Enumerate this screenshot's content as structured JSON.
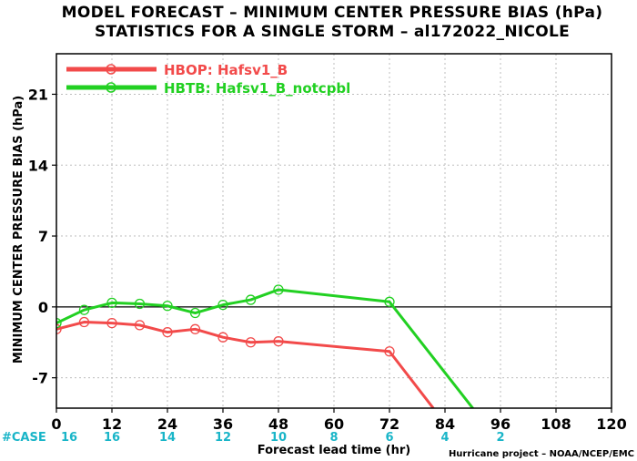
{
  "chart_data": {
    "type": "line",
    "title": "MODEL FORECAST – MINIMUM CENTER PRESSURE BIAS (hPa)",
    "subtitle": "STATISTICS FOR A SINGLE STORM – al172022_NICOLE",
    "xlabel": "Forecast lead time (hr)",
    "ylabel": "MINIMUM CENTER PRESSURE BIAS (hPa)",
    "xlim": [
      0,
      120
    ],
    "ylim": [
      -10,
      25
    ],
    "x_ticks": [
      0,
      12,
      24,
      36,
      48,
      60,
      72,
      84,
      96,
      108,
      120
    ],
    "y_ticks": [
      -7,
      0,
      7,
      14,
      21
    ],
    "grid": true,
    "legend_position": "top-left",
    "case_label": "#CASE",
    "case_counts": [
      {
        "x": 0,
        "n": "16"
      },
      {
        "x": 12,
        "n": "16"
      },
      {
        "x": 24,
        "n": "14"
      },
      {
        "x": 36,
        "n": "12"
      },
      {
        "x": 48,
        "n": "10"
      },
      {
        "x": 60,
        "n": "8"
      },
      {
        "x": 72,
        "n": "6"
      },
      {
        "x": 84,
        "n": "4"
      },
      {
        "x": 96,
        "n": "2"
      }
    ],
    "credit": "Hurricane project – NOAA/NCEP/EMC",
    "series": [
      {
        "name": "HBOP: Hafsv1_B",
        "color": "#f24a4a",
        "x": [
          0,
          6,
          12,
          18,
          24,
          30,
          36,
          42,
          48,
          72,
          84
        ],
        "y": [
          -2.2,
          -1.5,
          -1.6,
          -1.8,
          -2.5,
          -2.2,
          -3.0,
          -3.5,
          -3.4,
          -4.4,
          -11.5
        ],
        "markers": [
          true,
          true,
          true,
          true,
          true,
          true,
          true,
          true,
          true,
          true,
          false
        ]
      },
      {
        "name": "HBTB: Hafsv1_B_notcpbl",
        "color": "#22d022",
        "x": [
          0,
          6,
          12,
          18,
          24,
          30,
          36,
          42,
          48,
          72,
          96
        ],
        "y": [
          -1.6,
          -0.3,
          0.4,
          0.3,
          0.1,
          -0.6,
          0.2,
          0.7,
          1.7,
          0.5,
          -13.5
        ],
        "markers": [
          true,
          true,
          true,
          true,
          true,
          true,
          true,
          true,
          true,
          true,
          false
        ]
      }
    ]
  }
}
